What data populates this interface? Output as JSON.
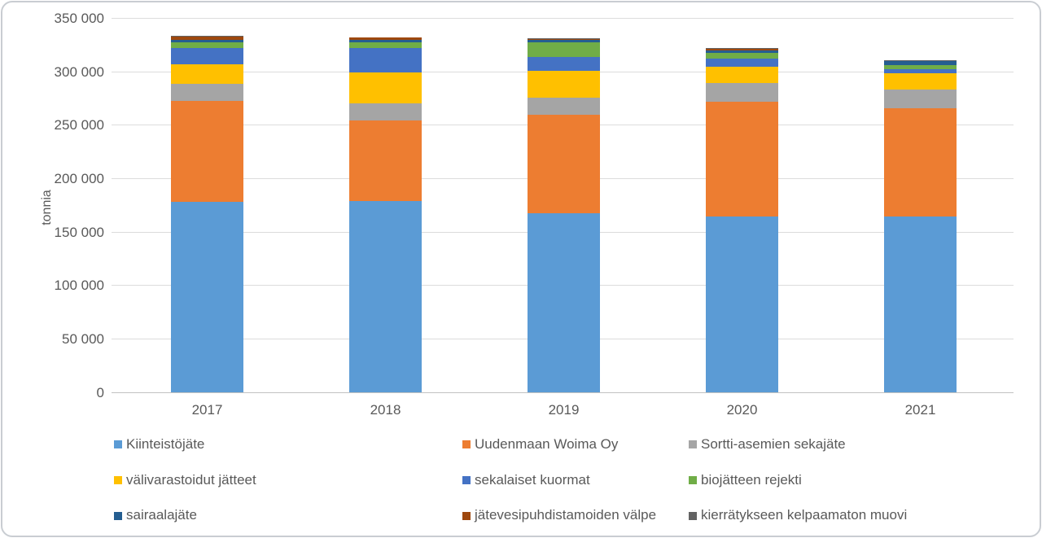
{
  "chart_data": {
    "type": "bar",
    "stacked": true,
    "title": "",
    "xlabel": "",
    "ylabel": "tonnia",
    "ylim": [
      0,
      350000
    ],
    "ytick_interval": 50000,
    "ytick_labels": [
      "0",
      "50 000",
      "100 000",
      "150 000",
      "200 000",
      "250 000",
      "300 000",
      "350 000"
    ],
    "grid": true,
    "legend_position": "bottom",
    "categories": [
      "2017",
      "2018",
      "2019",
      "2020",
      "2021"
    ],
    "series": [
      {
        "name": "Kiinteistöjäte",
        "color": "#5B9BD5",
        "values": [
          177600,
          178500,
          167000,
          164000,
          164000
        ]
      },
      {
        "name": "Uudenmaan Woima Oy",
        "color": "#ED7D31",
        "values": [
          95000,
          75900,
          92400,
          107500,
          101800
        ]
      },
      {
        "name": "Sortti-asemien sekajäte",
        "color": "#A5A5A5",
        "values": [
          15700,
          15800,
          16300,
          17800,
          17000
        ]
      },
      {
        "name": "välivarastoidut jätteet",
        "color": "#FFC000",
        "values": [
          18600,
          28800,
          24900,
          14700,
          15800
        ]
      },
      {
        "name": "sekalaiset kuormat",
        "color": "#4472C4",
        "values": [
          15000,
          22700,
          12800,
          7900,
          3300
        ]
      },
      {
        "name": "biojätteen rejekti",
        "color": "#70AD47",
        "values": [
          5000,
          5300,
          14000,
          5300,
          3800
        ]
      },
      {
        "name": "sairaalajäte",
        "color": "#255E91",
        "values": [
          2600,
          2700,
          1900,
          2300,
          3800
        ]
      },
      {
        "name": "jätevesipuhdistamoiden välpe",
        "color": "#9E480E",
        "values": [
          3300,
          1800,
          1100,
          1200,
          600
        ]
      },
      {
        "name": "kierrätykseen kelpaamaton muovi",
        "color": "#636363",
        "values": [
          500,
          500,
          800,
          800,
          700
        ]
      }
    ],
    "colors": {
      "grid": "#dcdcdc",
      "axis": "#c2c2c2",
      "text": "#595959",
      "background": "#ffffff"
    }
  }
}
